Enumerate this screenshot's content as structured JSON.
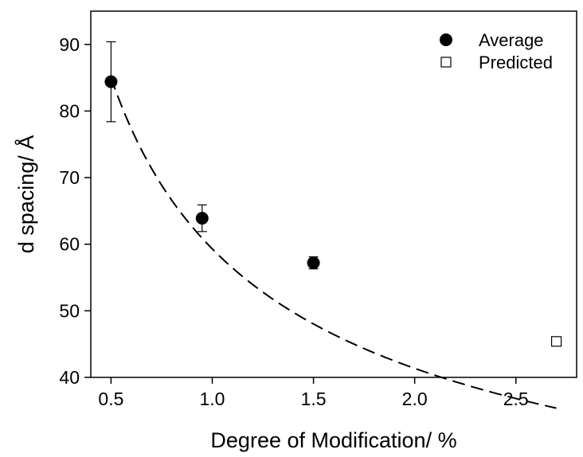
{
  "chart_data": {
    "type": "scatter",
    "xlabel": "Degree of Modification/ %",
    "ylabel": "d spacing/ Å",
    "xlim": [
      0.4,
      2.8
    ],
    "ylim": [
      40,
      95
    ],
    "x_ticks": [
      {
        "value": 0.5,
        "label": "0.5"
      },
      {
        "value": 1.0,
        "label": "1.0"
      },
      {
        "value": 1.5,
        "label": "1.5"
      },
      {
        "value": 2.0,
        "label": "2.0"
      },
      {
        "value": 2.5,
        "label": "2.5"
      }
    ],
    "y_ticks": [
      {
        "value": 40,
        "label": "40"
      },
      {
        "value": 50,
        "label": "50"
      },
      {
        "value": 60,
        "label": "60"
      },
      {
        "value": 70,
        "label": "70"
      },
      {
        "value": 80,
        "label": "80"
      },
      {
        "value": 90,
        "label": "90"
      }
    ],
    "grid": false,
    "legend_position": "top-right",
    "series": [
      {
        "name": "Average",
        "marker": "filled-circle",
        "color": "#000000",
        "points": [
          {
            "x": 0.5,
            "y": 84.4,
            "err": 6.0
          },
          {
            "x": 0.95,
            "y": 63.9,
            "err": 2.0
          },
          {
            "x": 1.5,
            "y": 57.2,
            "err": 0.9
          }
        ]
      },
      {
        "name": "Predicted",
        "marker": "open-square",
        "color": "#000000",
        "points": [
          {
            "x": 2.7,
            "y": 45.4
          }
        ]
      }
    ],
    "fit_curve": {
      "style": "dashed",
      "color": "#000000",
      "x_range": [
        0.5,
        2.7
      ],
      "a": 59.3,
      "b": -0.52
    }
  }
}
